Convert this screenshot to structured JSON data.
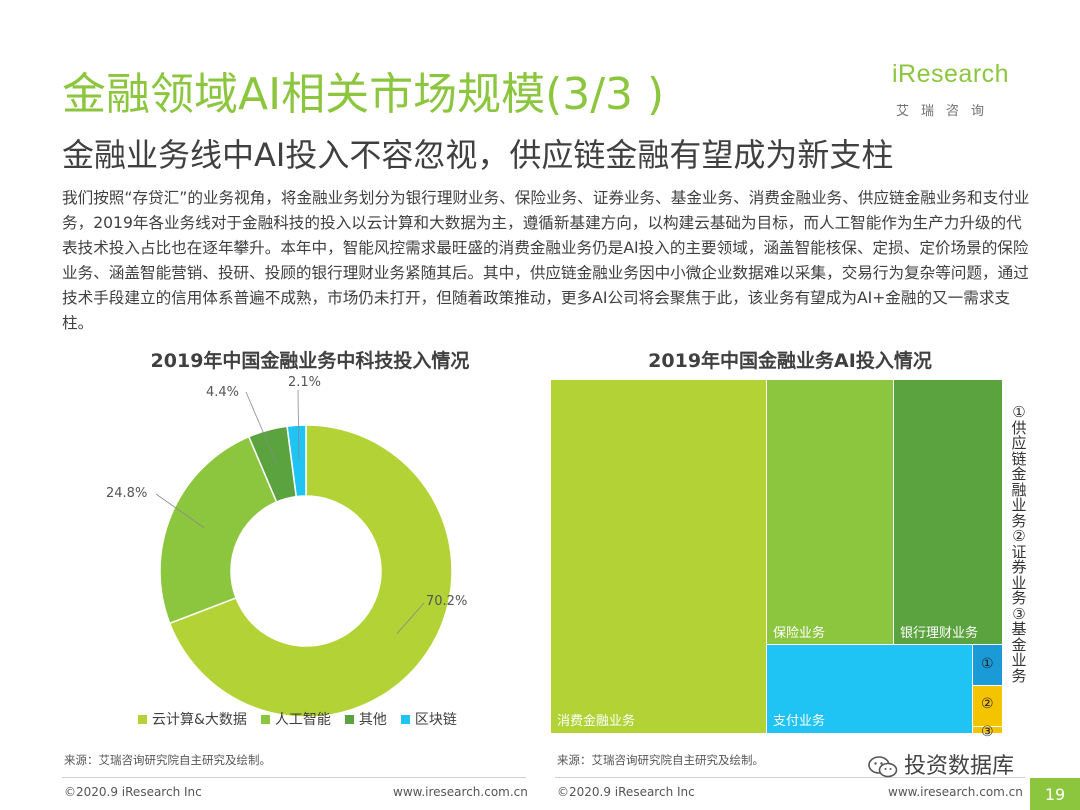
{
  "header": {
    "title": "金融领域AI相关市场规模(3/3 )",
    "subtitle": "金融业务线中AI投入不容忽视，供应链金融有望成为新支柱"
  },
  "logo": {
    "text": "iResearch",
    "sub": "艾瑞咨询"
  },
  "intro": "我们按照“存贷汇”的业务视角，将金融业务划分为银行理财业务、保险业务、证券业务、基金业务、消费金融业务、供应链金融业务和支付业务，2019年各业务线对于金融科技的投入以云计算和大数据为主，遵循新基建方向，以构建云基础为目标，而人工智能作为生产力升级的代表技术投入占比也在逐年攀升。本年中，智能风控需求最旺盛的消费金融业务仍是AI投入的主要领域，涵盖智能核保、定损、定价场景的保险业务、涵盖智能营销、投研、投顾的银行理财业务紧随其后。其中，供应链金融业务因中小微企业数据难以采集，交易行为复杂等问题，通过技术手段建立的信用体系普遍不成熟，市场仍未打开，但随着政策推动，更多AI公司将会聚焦于此，该业务有望成为AI+金融的又一需求支柱。",
  "chart_data": [
    {
      "type": "pie",
      "title": "2019年中国金融业务中科技投入情况",
      "categories": [
        "云计算&大数据",
        "人工智能",
        "其他",
        "区块链"
      ],
      "values": [
        70.2,
        24.8,
        4.4,
        2.1
      ],
      "value_labels": [
        "70.2%",
        "24.8%",
        "4.4%",
        "2.1%"
      ],
      "colors": [
        "#b2d235",
        "#8cc63f",
        "#5aa33e",
        "#1fc4f4"
      ],
      "legend": "bottom"
    },
    {
      "type": "treemap",
      "title": "2019年中国金融业务AI投入情况",
      "items": [
        {
          "name": "消费金融业务",
          "color": "#b2d235"
        },
        {
          "name": "保险业务",
          "color": "#8cc63f"
        },
        {
          "name": "银行理财业务",
          "color": "#5aa33e"
        },
        {
          "name": "支付业务",
          "color": "#1fc4f4"
        },
        {
          "name": "①",
          "color": "#1a9bd7"
        },
        {
          "name": "②",
          "color": "#f5c400"
        },
        {
          "name": "③",
          "color": "#f5c400"
        }
      ],
      "side_note": "①供应链金融业务②证券业务③基金业务"
    }
  ],
  "source_left": "来源：艾瑞咨询研究院自主研究及绘制。",
  "source_right": "来源：艾瑞咨询研究院自主研究及绘制。",
  "footer": {
    "copyright_left": "©2020.9 iResearch Inc",
    "url_left": "www.iresearch.com.cn",
    "copyright_right": "©2020.9 iResearch Inc",
    "url_right": "www.iresearch.com.cn",
    "watermark": "投资数据库",
    "page": "19"
  }
}
